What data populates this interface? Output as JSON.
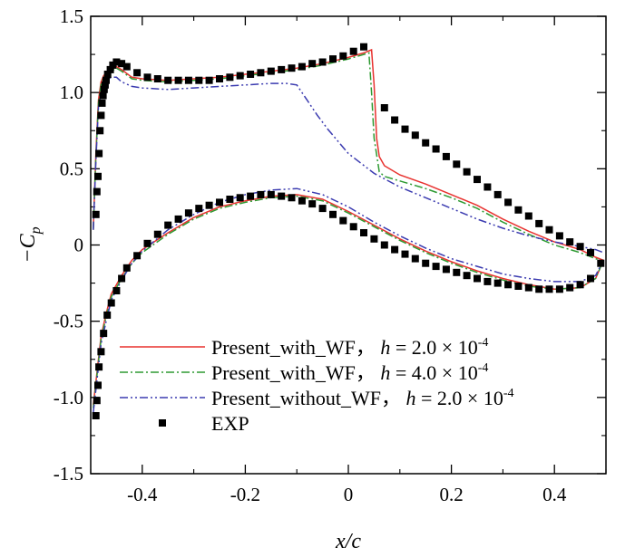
{
  "chart_data": {
    "type": "line",
    "xlabel": "x/c",
    "ylabel": "−C_p",
    "xlim": [
      -0.5,
      0.5
    ],
    "ylim": [
      -1.5,
      1.5
    ],
    "x_ticks": [
      -0.4,
      -0.2,
      0,
      0.2,
      0.4
    ],
    "x_tick_labels": [
      "-0.4",
      "-0.2",
      "0",
      "0.2",
      "0.4"
    ],
    "y_ticks": [
      -1.5,
      -1.0,
      -0.5,
      0,
      0.5,
      1.0,
      1.5
    ],
    "y_tick_labels": [
      "-1.5",
      "-1.0",
      "-0.5",
      "0",
      "0.5",
      "1.0",
      "1.5"
    ],
    "grid": false,
    "legend_position": "bottom-right",
    "series": [
      {
        "name": "Present_with_WF， h = 2.0 × 10-4",
        "label_base": "Present_with_WF，",
        "label_h": "h",
        "label_eq": " = 2.0 × 10",
        "label_exp": "-4",
        "color": "#e8322f",
        "style": "solid",
        "upper": {
          "x": [
            -0.495,
            -0.49,
            -0.485,
            -0.48,
            -0.475,
            -0.47,
            -0.46,
            -0.45,
            -0.44,
            -0.42,
            -0.4,
            -0.35,
            -0.3,
            -0.25,
            -0.2,
            -0.15,
            -0.1,
            -0.05,
            0.0,
            0.03,
            0.045,
            0.05,
            0.055,
            0.06,
            0.07,
            0.1,
            0.15,
            0.2,
            0.25,
            0.3,
            0.35,
            0.4,
            0.45,
            0.48,
            0.495
          ],
          "y": [
            0.1,
            0.6,
            0.95,
            1.07,
            1.11,
            1.13,
            1.15,
            1.17,
            1.15,
            1.1,
            1.09,
            1.08,
            1.09,
            1.1,
            1.12,
            1.14,
            1.16,
            1.19,
            1.23,
            1.26,
            1.28,
            1.05,
            0.7,
            0.58,
            0.52,
            0.46,
            0.4,
            0.33,
            0.26,
            0.17,
            0.09,
            0.02,
            -0.03,
            -0.08,
            -0.1
          ]
        },
        "lower": {
          "x": [
            -0.495,
            -0.49,
            -0.485,
            -0.48,
            -0.47,
            -0.46,
            -0.44,
            -0.42,
            -0.4,
            -0.35,
            -0.3,
            -0.25,
            -0.2,
            -0.15,
            -0.1,
            -0.05,
            0.0,
            0.05,
            0.1,
            0.15,
            0.2,
            0.25,
            0.3,
            0.35,
            0.4,
            0.45,
            0.48,
            0.495
          ],
          "y": [
            -1.05,
            -0.9,
            -0.75,
            -0.6,
            -0.45,
            -0.32,
            -0.2,
            -0.1,
            -0.03,
            0.08,
            0.18,
            0.25,
            0.29,
            0.32,
            0.33,
            0.3,
            0.22,
            0.13,
            0.04,
            -0.04,
            -0.11,
            -0.17,
            -0.22,
            -0.26,
            -0.29,
            -0.28,
            -0.22,
            -0.1
          ]
        }
      },
      {
        "name": "Present_with_WF， h = 4.0 × 10-4",
        "label_base": "Present_with_WF，",
        "label_h": "h",
        "label_eq": " = 4.0 × 10",
        "label_exp": "-4",
        "color": "#2e9a32",
        "style": "dashdot",
        "upper": {
          "x": [
            -0.495,
            -0.49,
            -0.485,
            -0.48,
            -0.475,
            -0.47,
            -0.46,
            -0.45,
            -0.44,
            -0.42,
            -0.4,
            -0.35,
            -0.3,
            -0.25,
            -0.2,
            -0.15,
            -0.1,
            -0.05,
            0.0,
            0.03,
            0.04,
            0.045,
            0.05,
            0.06,
            0.07,
            0.1,
            0.15,
            0.2,
            0.25,
            0.3,
            0.35,
            0.4,
            0.45,
            0.48,
            0.495
          ],
          "y": [
            0.1,
            0.58,
            0.93,
            1.05,
            1.1,
            1.12,
            1.14,
            1.16,
            1.14,
            1.09,
            1.08,
            1.07,
            1.08,
            1.09,
            1.11,
            1.13,
            1.15,
            1.18,
            1.22,
            1.25,
            1.26,
            1.0,
            0.7,
            0.48,
            0.45,
            0.42,
            0.37,
            0.31,
            0.24,
            0.15,
            0.07,
            0.0,
            -0.05,
            -0.09,
            -0.11
          ]
        },
        "lower": {
          "x": [
            -0.495,
            -0.49,
            -0.485,
            -0.48,
            -0.47,
            -0.46,
            -0.44,
            -0.42,
            -0.4,
            -0.35,
            -0.3,
            -0.25,
            -0.2,
            -0.15,
            -0.1,
            -0.05,
            0.0,
            0.05,
            0.1,
            0.15,
            0.2,
            0.25,
            0.3,
            0.35,
            0.4,
            0.45,
            0.48,
            0.495
          ],
          "y": [
            -1.07,
            -0.92,
            -0.77,
            -0.62,
            -0.47,
            -0.34,
            -0.22,
            -0.12,
            -0.05,
            0.07,
            0.17,
            0.24,
            0.28,
            0.31,
            0.32,
            0.29,
            0.21,
            0.12,
            0.03,
            -0.05,
            -0.12,
            -0.18,
            -0.23,
            -0.27,
            -0.29,
            -0.28,
            -0.22,
            -0.1
          ]
        }
      },
      {
        "name": "Present_without_WF， h = 2.0 × 10-4",
        "label_base": "Present_without_WF，",
        "label_h": "h",
        "label_eq": " = 2.0 × 10",
        "label_exp": "-4",
        "color": "#3b3bb0",
        "style": "dashdotdot",
        "upper": {
          "x": [
            -0.495,
            -0.49,
            -0.485,
            -0.48,
            -0.475,
            -0.47,
            -0.46,
            -0.45,
            -0.44,
            -0.42,
            -0.4,
            -0.35,
            -0.3,
            -0.25,
            -0.2,
            -0.15,
            -0.12,
            -0.1,
            -0.08,
            -0.06,
            -0.04,
            -0.02,
            0.0,
            0.05,
            0.1,
            0.15,
            0.2,
            0.25,
            0.3,
            0.35,
            0.4,
            0.45,
            0.48,
            0.495
          ],
          "y": [
            0.1,
            0.55,
            0.9,
            1.0,
            1.05,
            1.08,
            1.1,
            1.1,
            1.07,
            1.04,
            1.03,
            1.02,
            1.03,
            1.04,
            1.05,
            1.06,
            1.06,
            1.05,
            0.95,
            0.85,
            0.76,
            0.68,
            0.6,
            0.47,
            0.38,
            0.31,
            0.24,
            0.17,
            0.11,
            0.06,
            0.02,
            -0.01,
            -0.03,
            -0.05
          ]
        },
        "lower": {
          "x": [
            -0.495,
            -0.49,
            -0.485,
            -0.48,
            -0.47,
            -0.46,
            -0.44,
            -0.42,
            -0.4,
            -0.35,
            -0.3,
            -0.25,
            -0.2,
            -0.15,
            -0.1,
            -0.05,
            0.0,
            0.05,
            0.1,
            0.15,
            0.2,
            0.25,
            0.3,
            0.35,
            0.4,
            0.45,
            0.48,
            0.495
          ],
          "y": [
            -1.1,
            -0.95,
            -0.8,
            -0.65,
            -0.5,
            -0.36,
            -0.23,
            -0.12,
            -0.04,
            0.1,
            0.2,
            0.28,
            0.33,
            0.36,
            0.37,
            0.33,
            0.25,
            0.15,
            0.06,
            -0.02,
            -0.09,
            -0.14,
            -0.19,
            -0.22,
            -0.24,
            -0.24,
            -0.2,
            -0.1
          ]
        }
      }
    ],
    "exp": {
      "name": "EXP",
      "color": "#000000",
      "marker": "square",
      "x": [
        -0.49,
        -0.488,
        -0.486,
        -0.484,
        -0.482,
        -0.48,
        -0.478,
        -0.476,
        -0.474,
        -0.472,
        -0.47,
        -0.467,
        -0.462,
        -0.457,
        -0.45,
        -0.44,
        -0.43,
        -0.41,
        -0.39,
        -0.37,
        -0.35,
        -0.33,
        -0.31,
        -0.29,
        -0.27,
        -0.25,
        -0.23,
        -0.21,
        -0.19,
        -0.17,
        -0.15,
        -0.13,
        -0.11,
        -0.09,
        -0.07,
        -0.05,
        -0.03,
        -0.01,
        0.01,
        0.03,
        0.07,
        0.09,
        0.11,
        0.13,
        0.15,
        0.17,
        0.19,
        0.21,
        0.23,
        0.25,
        0.27,
        0.29,
        0.31,
        0.33,
        0.35,
        0.37,
        0.39,
        0.41,
        0.43,
        0.45,
        0.47,
        0.49,
        -0.49,
        -0.488,
        -0.486,
        -0.484,
        -0.48,
        -0.475,
        -0.468,
        -0.46,
        -0.45,
        -0.44,
        -0.43,
        -0.41,
        -0.39,
        -0.37,
        -0.35,
        -0.33,
        -0.31,
        -0.29,
        -0.27,
        -0.25,
        -0.23,
        -0.21,
        -0.19,
        -0.17,
        -0.15,
        -0.13,
        -0.11,
        -0.09,
        -0.07,
        -0.05,
        -0.03,
        -0.01,
        0.01,
        0.03,
        0.05,
        0.07,
        0.09,
        0.11,
        0.13,
        0.15,
        0.17,
        0.19,
        0.21,
        0.23,
        0.25,
        0.27,
        0.29,
        0.31,
        0.33,
        0.35,
        0.37,
        0.39,
        0.41,
        0.43,
        0.45,
        0.47
      ],
      "y": [
        0.2,
        0.35,
        0.45,
        0.6,
        0.75,
        0.85,
        0.93,
        0.98,
        1.02,
        1.05,
        1.08,
        1.12,
        1.15,
        1.18,
        1.2,
        1.19,
        1.17,
        1.13,
        1.1,
        1.09,
        1.08,
        1.08,
        1.08,
        1.08,
        1.08,
        1.09,
        1.1,
        1.11,
        1.12,
        1.13,
        1.14,
        1.15,
        1.16,
        1.17,
        1.19,
        1.2,
        1.22,
        1.24,
        1.27,
        1.3,
        0.9,
        0.82,
        0.76,
        0.72,
        0.67,
        0.63,
        0.58,
        0.53,
        0.48,
        0.43,
        0.38,
        0.33,
        0.28,
        0.23,
        0.19,
        0.14,
        0.1,
        0.06,
        0.02,
        -0.01,
        -0.05,
        -0.12,
        -1.12,
        -1.02,
        -0.92,
        -0.8,
        -0.7,
        -0.58,
        -0.46,
        -0.38,
        -0.3,
        -0.22,
        -0.15,
        -0.07,
        0.01,
        0.07,
        0.13,
        0.17,
        0.21,
        0.24,
        0.26,
        0.28,
        0.3,
        0.31,
        0.32,
        0.33,
        0.33,
        0.32,
        0.31,
        0.29,
        0.27,
        0.24,
        0.2,
        0.16,
        0.12,
        0.08,
        0.04,
        0.0,
        -0.03,
        -0.06,
        -0.09,
        -0.12,
        -0.14,
        -0.16,
        -0.18,
        -0.2,
        -0.22,
        -0.24,
        -0.25,
        -0.26,
        -0.27,
        -0.28,
        -0.29,
        -0.29,
        -0.29,
        -0.28,
        -0.26,
        -0.22
      ]
    }
  }
}
